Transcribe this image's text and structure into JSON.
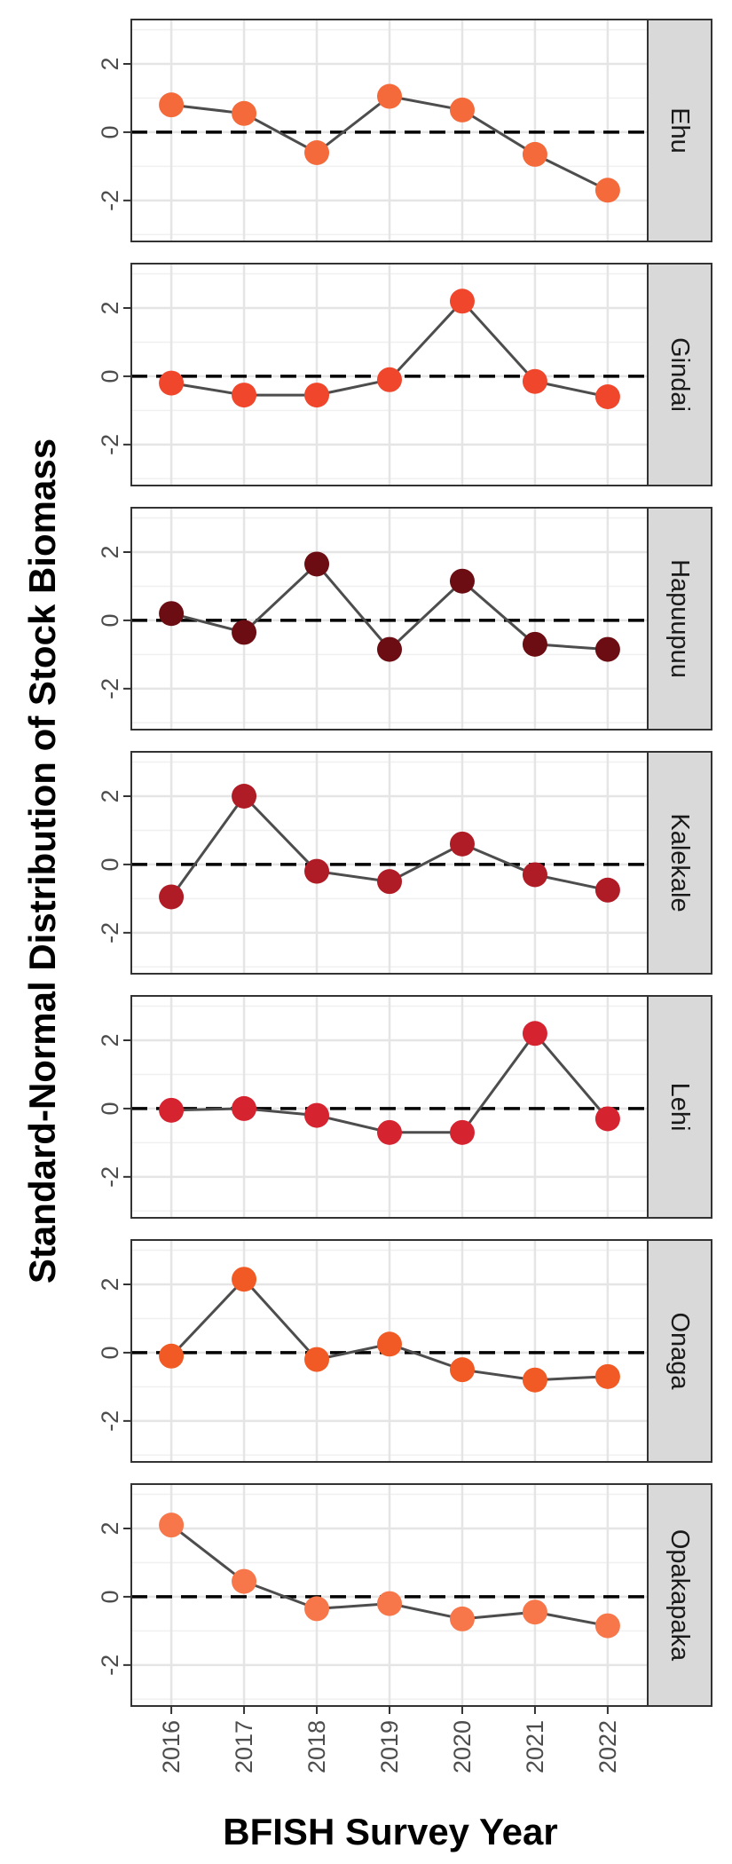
{
  "chart_data": {
    "type": "line",
    "xlabel": "BFISH Survey Year",
    "ylabel": "Standard-Normal Distribution of Stock Biomass",
    "x": [
      "2016",
      "2017",
      "2018",
      "2019",
      "2020",
      "2021",
      "2022"
    ],
    "ylim": [
      -3.2,
      3.3
    ],
    "yticks": [
      "-2",
      "0",
      "2"
    ],
    "reference_line": 0,
    "grid": true,
    "line_color": "#4d4d4d",
    "panels": [
      {
        "label": "Ehu",
        "color": "#f46a3b",
        "values": [
          0.8,
          0.55,
          -0.6,
          1.05,
          0.65,
          -0.65,
          -1.7
        ]
      },
      {
        "label": "Gindai",
        "color": "#f0462b",
        "values": [
          -0.2,
          -0.55,
          -0.55,
          -0.1,
          2.2,
          -0.15,
          -0.6
        ]
      },
      {
        "label": "Hapuupuu",
        "color": "#6b0d12",
        "values": [
          0.2,
          -0.35,
          1.65,
          -0.85,
          1.15,
          -0.7,
          -0.85
        ]
      },
      {
        "label": "Kalekale",
        "color": "#b01c26",
        "values": [
          -0.95,
          2.0,
          -0.2,
          -0.5,
          0.6,
          -0.3,
          -0.75
        ]
      },
      {
        "label": "Lehi",
        "color": "#d62330",
        "values": [
          -0.05,
          0.0,
          -0.2,
          -0.7,
          -0.7,
          2.2,
          -0.3
        ]
      },
      {
        "label": "Onaga",
        "color": "#f15a24",
        "values": [
          -0.1,
          2.15,
          -0.2,
          0.25,
          -0.5,
          -0.8,
          -0.7
        ]
      },
      {
        "label": "Opakapaka",
        "color": "#f7774a",
        "values": [
          2.1,
          0.45,
          -0.35,
          -0.2,
          -0.65,
          -0.45,
          -0.85
        ]
      }
    ]
  }
}
